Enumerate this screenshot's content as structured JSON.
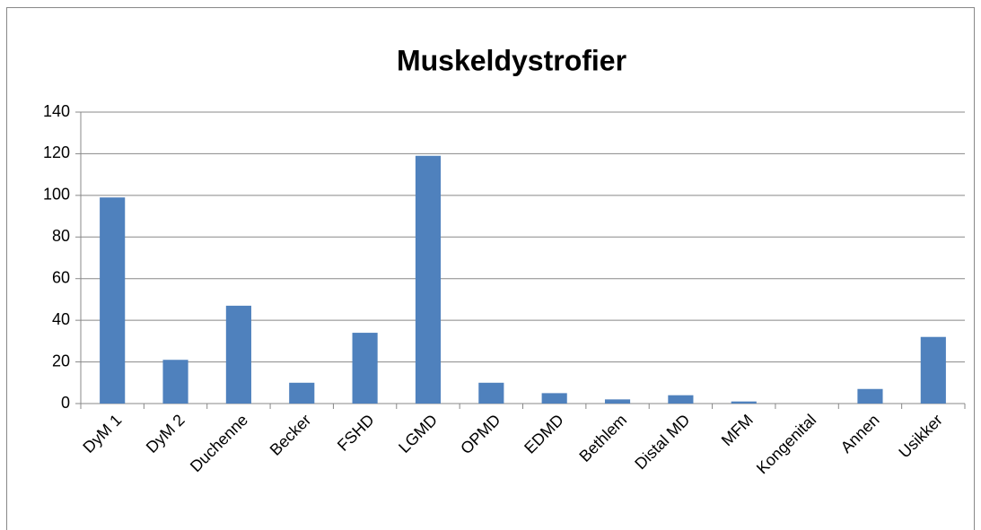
{
  "chart_data": {
    "type": "bar",
    "title": "Muskeldystrofier",
    "categories": [
      "DyM 1",
      "DyM 2",
      "Duchenne",
      "Becker",
      "FSHD",
      "LGMD",
      "OPMD",
      "EDMD",
      "Bethlem",
      "Distal MD",
      "MFM",
      "Kongenital",
      "Annen",
      "Usikker"
    ],
    "values": [
      99,
      21,
      47,
      10,
      34,
      119,
      10,
      5,
      2,
      4,
      1,
      0,
      7,
      32
    ],
    "color": "#4f81bd",
    "ylim": [
      0,
      140
    ],
    "yticks": [
      0,
      20,
      40,
      60,
      80,
      100,
      120,
      140
    ],
    "grid": true
  }
}
